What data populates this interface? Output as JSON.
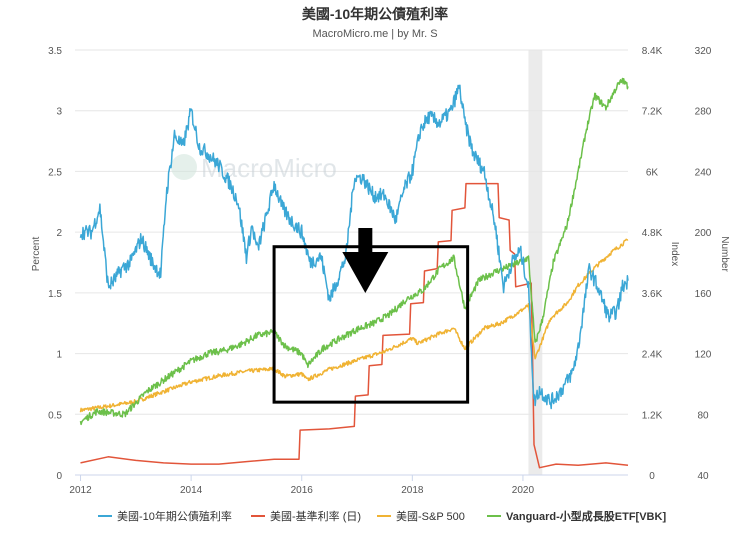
{
  "chart_data": {
    "type": "line",
    "title": "美國-10年期公債殖利率",
    "subtitle": "MacroMicro.me | by Mr. S",
    "watermark": "MacroMicro",
    "x_axis": {
      "ticks": [
        "2012",
        "2014",
        "2016",
        "2018",
        "2020"
      ],
      "range": [
        2011.9,
        2021.9
      ]
    },
    "y_left": {
      "label": "Percent",
      "ticks": [
        "0",
        "0.5",
        "1",
        "1.5",
        "2",
        "2.5",
        "3",
        "3.5"
      ],
      "range": [
        0,
        3.5
      ]
    },
    "y_right1": {
      "label": "Index",
      "ticks": [
        "0",
        "1.2K",
        "2.4K",
        "3.6K",
        "4.8K",
        "6K",
        "7.2K",
        "8.4K"
      ],
      "range": [
        0,
        8400
      ]
    },
    "y_right2": {
      "label": "Number",
      "ticks": [
        "40",
        "80",
        "120",
        "160",
        "200",
        "240",
        "280",
        "320"
      ],
      "range": [
        40,
        320
      ]
    },
    "recession_band": [
      2020.1,
      2020.35
    ],
    "annotation": {
      "type": "box-and-arrow",
      "x_range": [
        2015.5,
        2019.0
      ],
      "y_range": [
        0.6,
        1.88
      ],
      "arrow_x": 2017.15
    },
    "series": [
      {
        "name": "美國-10年期公債殖利率",
        "color": "#3ba7d6",
        "axis": "left",
        "points": [
          [
            2012.0,
            2.0
          ],
          [
            2012.2,
            2.0
          ],
          [
            2012.35,
            2.2
          ],
          [
            2012.5,
            1.55
          ],
          [
            2012.6,
            1.6
          ],
          [
            2012.75,
            1.7
          ],
          [
            2012.9,
            1.75
          ],
          [
            2013.1,
            1.95
          ],
          [
            2013.3,
            1.75
          ],
          [
            2013.45,
            1.65
          ],
          [
            2013.55,
            2.3
          ],
          [
            2013.7,
            2.8
          ],
          [
            2013.85,
            2.7
          ],
          [
            2014.0,
            3.0
          ],
          [
            2014.15,
            2.7
          ],
          [
            2014.3,
            2.65
          ],
          [
            2014.5,
            2.55
          ],
          [
            2014.7,
            2.4
          ],
          [
            2014.85,
            2.25
          ],
          [
            2015.0,
            1.8
          ],
          [
            2015.1,
            2.05
          ],
          [
            2015.2,
            1.85
          ],
          [
            2015.4,
            2.2
          ],
          [
            2015.5,
            2.4
          ],
          [
            2015.65,
            2.2
          ],
          [
            2015.8,
            2.1
          ],
          [
            2016.0,
            2.0
          ],
          [
            2016.15,
            1.75
          ],
          [
            2016.35,
            1.8
          ],
          [
            2016.5,
            1.45
          ],
          [
            2016.6,
            1.55
          ],
          [
            2016.8,
            1.8
          ],
          [
            2016.95,
            2.45
          ],
          [
            2017.1,
            2.45
          ],
          [
            2017.3,
            2.3
          ],
          [
            2017.5,
            2.3
          ],
          [
            2017.7,
            2.1
          ],
          [
            2017.85,
            2.35
          ],
          [
            2018.0,
            2.5
          ],
          [
            2018.15,
            2.85
          ],
          [
            2018.3,
            2.95
          ],
          [
            2018.5,
            2.9
          ],
          [
            2018.7,
            3.0
          ],
          [
            2018.85,
            3.2
          ],
          [
            2018.95,
            2.9
          ],
          [
            2019.1,
            2.65
          ],
          [
            2019.3,
            2.5
          ],
          [
            2019.5,
            2.05
          ],
          [
            2019.65,
            1.55
          ],
          [
            2019.8,
            1.75
          ],
          [
            2019.95,
            1.85
          ],
          [
            2020.1,
            1.55
          ],
          [
            2020.2,
            0.6
          ],
          [
            2020.3,
            0.7
          ],
          [
            2020.5,
            0.6
          ],
          [
            2020.7,
            0.7
          ],
          [
            2020.9,
            0.85
          ],
          [
            2021.0,
            1.05
          ],
          [
            2021.2,
            1.7
          ],
          [
            2021.35,
            1.55
          ],
          [
            2021.55,
            1.3
          ],
          [
            2021.7,
            1.35
          ],
          [
            2021.8,
            1.55
          ],
          [
            2021.9,
            1.6
          ]
        ]
      },
      {
        "name": "美國-基準利率 (日)",
        "color": "#e2553a",
        "axis": "left",
        "points": [
          [
            2012.0,
            0.1
          ],
          [
            2012.5,
            0.15
          ],
          [
            2013.0,
            0.12
          ],
          [
            2013.5,
            0.1
          ],
          [
            2014.0,
            0.09
          ],
          [
            2014.5,
            0.09
          ],
          [
            2015.0,
            0.11
          ],
          [
            2015.5,
            0.13
          ],
          [
            2015.95,
            0.13
          ],
          [
            2015.97,
            0.37
          ],
          [
            2016.5,
            0.38
          ],
          [
            2016.95,
            0.4
          ],
          [
            2016.97,
            0.65
          ],
          [
            2017.2,
            0.66
          ],
          [
            2017.22,
            0.9
          ],
          [
            2017.45,
            0.91
          ],
          [
            2017.47,
            1.15
          ],
          [
            2017.95,
            1.16
          ],
          [
            2017.97,
            1.41
          ],
          [
            2018.2,
            1.42
          ],
          [
            2018.22,
            1.68
          ],
          [
            2018.45,
            1.7
          ],
          [
            2018.47,
            1.92
          ],
          [
            2018.7,
            1.93
          ],
          [
            2018.72,
            2.18
          ],
          [
            2018.95,
            2.2
          ],
          [
            2018.97,
            2.4
          ],
          [
            2019.55,
            2.4
          ],
          [
            2019.57,
            2.12
          ],
          [
            2019.75,
            2.1
          ],
          [
            2019.77,
            1.85
          ],
          [
            2019.85,
            1.82
          ],
          [
            2019.87,
            1.55
          ],
          [
            2020.15,
            1.58
          ],
          [
            2020.17,
            1.1
          ],
          [
            2020.2,
            0.25
          ],
          [
            2020.3,
            0.06
          ],
          [
            2020.6,
            0.09
          ],
          [
            2021.0,
            0.08
          ],
          [
            2021.5,
            0.1
          ],
          [
            2021.9,
            0.08
          ]
        ]
      },
      {
        "name": "美國-S&P 500",
        "color": "#f0b334",
        "axis": "right1",
        "points": [
          [
            2012.0,
            1280
          ],
          [
            2012.5,
            1360
          ],
          [
            2013.0,
            1450
          ],
          [
            2013.5,
            1650
          ],
          [
            2014.0,
            1840
          ],
          [
            2014.5,
            1960
          ],
          [
            2015.0,
            2050
          ],
          [
            2015.5,
            2100
          ],
          [
            2015.7,
            1950
          ],
          [
            2016.0,
            2000
          ],
          [
            2016.1,
            1880
          ],
          [
            2016.5,
            2090
          ],
          [
            2017.0,
            2270
          ],
          [
            2017.5,
            2440
          ],
          [
            2018.0,
            2700
          ],
          [
            2018.1,
            2600
          ],
          [
            2018.5,
            2800
          ],
          [
            2018.75,
            2900
          ],
          [
            2018.95,
            2500
          ],
          [
            2019.3,
            2900
          ],
          [
            2019.6,
            3000
          ],
          [
            2019.9,
            3200
          ],
          [
            2020.1,
            3350
          ],
          [
            2020.22,
            2300
          ],
          [
            2020.5,
            3100
          ],
          [
            2020.8,
            3400
          ],
          [
            2021.0,
            3750
          ],
          [
            2021.3,
            4100
          ],
          [
            2021.6,
            4400
          ],
          [
            2021.9,
            4650
          ]
        ]
      },
      {
        "name": "Vanguard-小型成長股ETF[VBK]",
        "color": "#6cc04a",
        "axis": "right2",
        "points": [
          [
            2012.0,
            75
          ],
          [
            2012.3,
            82
          ],
          [
            2012.8,
            80
          ],
          [
            2013.2,
            95
          ],
          [
            2013.6,
            105
          ],
          [
            2014.0,
            115
          ],
          [
            2014.3,
            120
          ],
          [
            2014.6,
            122
          ],
          [
            2014.9,
            126
          ],
          [
            2015.2,
            132
          ],
          [
            2015.5,
            134
          ],
          [
            2015.7,
            125
          ],
          [
            2016.0,
            120
          ],
          [
            2016.1,
            112
          ],
          [
            2016.4,
            124
          ],
          [
            2016.7,
            130
          ],
          [
            2017.0,
            136
          ],
          [
            2017.3,
            140
          ],
          [
            2017.6,
            146
          ],
          [
            2017.9,
            156
          ],
          [
            2018.2,
            162
          ],
          [
            2018.5,
            176
          ],
          [
            2018.75,
            183
          ],
          [
            2018.95,
            150
          ],
          [
            2019.2,
            168
          ],
          [
            2019.5,
            174
          ],
          [
            2019.8,
            178
          ],
          [
            2020.1,
            183
          ],
          [
            2020.22,
            126
          ],
          [
            2020.35,
            142
          ],
          [
            2020.55,
            180
          ],
          [
            2020.8,
            205
          ],
          [
            2021.0,
            240
          ],
          [
            2021.15,
            268
          ],
          [
            2021.3,
            290
          ],
          [
            2021.5,
            282
          ],
          [
            2021.7,
            296
          ],
          [
            2021.8,
            300
          ],
          [
            2021.9,
            296
          ]
        ]
      }
    ]
  }
}
